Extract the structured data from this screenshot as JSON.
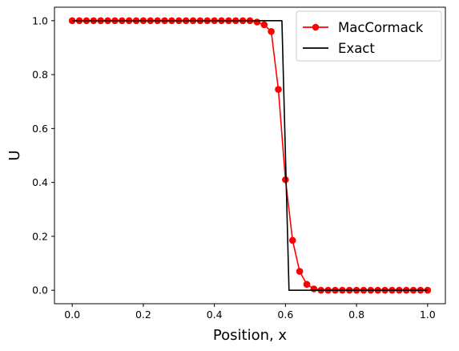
{
  "chart_data": {
    "type": "line",
    "title": "",
    "xlabel": "Position, x",
    "ylabel": "U",
    "xlim": [
      -0.05,
      1.05
    ],
    "ylim": [
      -0.05,
      1.05
    ],
    "grid": false,
    "legend_position": "top-right",
    "x_ticks": [
      "0.0",
      "0.2",
      "0.4",
      "0.6",
      "0.8",
      "1.0"
    ],
    "y_ticks": [
      "0.0",
      "0.2",
      "0.4",
      "0.6",
      "0.8",
      "1.0"
    ],
    "series": [
      {
        "name": "MacCormack",
        "color": "#ff0000",
        "marker": "circle",
        "x": [
          0.0,
          0.02,
          0.04,
          0.06,
          0.08,
          0.1,
          0.12,
          0.14,
          0.16,
          0.18,
          0.2,
          0.22,
          0.24,
          0.26,
          0.28,
          0.3,
          0.32,
          0.34,
          0.36,
          0.38,
          0.4,
          0.42,
          0.44,
          0.46,
          0.48,
          0.5,
          0.52,
          0.54,
          0.56,
          0.58,
          0.6,
          0.62,
          0.64,
          0.66,
          0.68,
          0.7,
          0.72,
          0.74,
          0.76,
          0.78,
          0.8,
          0.82,
          0.84,
          0.86,
          0.88,
          0.9,
          0.92,
          0.94,
          0.96,
          0.98,
          1.0
        ],
        "y": [
          1.0,
          1.0,
          1.0,
          1.0,
          1.0,
          1.0,
          1.0,
          1.0,
          1.0,
          1.0,
          1.0,
          1.0,
          1.0,
          1.0,
          1.0,
          1.0,
          1.0,
          1.0,
          1.0,
          1.0,
          1.0,
          1.0,
          1.0,
          1.0,
          1.0,
          1.0,
          0.995,
          0.985,
          0.96,
          0.745,
          0.41,
          0.185,
          0.07,
          0.022,
          0.005,
          0.0,
          0.0,
          0.0,
          0.0,
          0.0,
          0.0,
          0.0,
          0.0,
          0.0,
          0.0,
          0.0,
          0.0,
          0.0,
          0.0,
          0.0,
          0.0
        ]
      },
      {
        "name": "Exact",
        "color": "#000000",
        "marker": "none",
        "x": [
          0.0,
          0.59,
          0.61,
          1.0
        ],
        "y": [
          1.0,
          1.0,
          0.0,
          0.0
        ]
      }
    ]
  }
}
